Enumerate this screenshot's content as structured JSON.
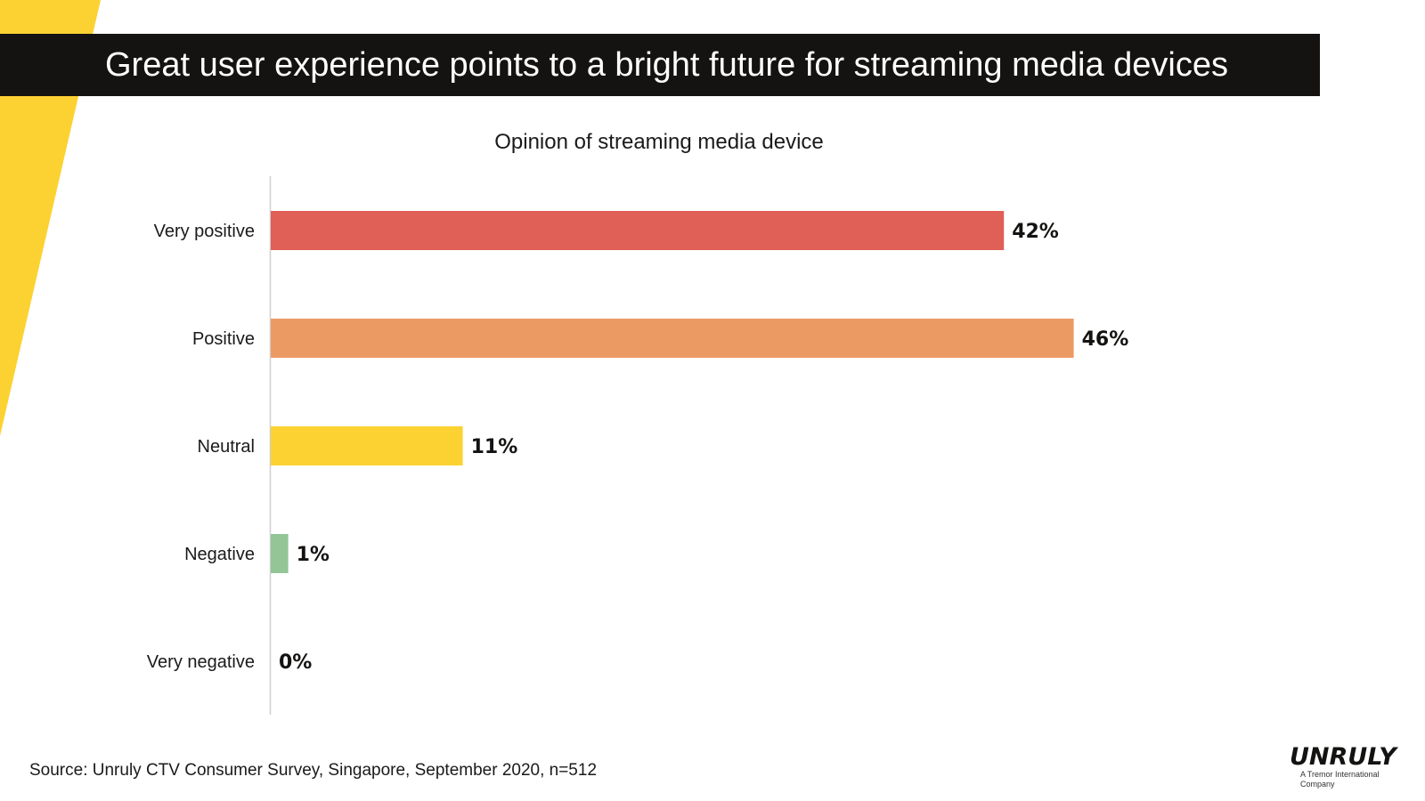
{
  "header": {
    "title": "Great user experience points to a bright future for streaming media devices"
  },
  "theme": {
    "accent": "#FCD232",
    "title_bar": "#141311",
    "axis": "#CFCFCF"
  },
  "chart_data": {
    "type": "bar",
    "orientation": "horizontal",
    "title": "Opinion of streaming media device",
    "categories": [
      "Very positive",
      "Positive",
      "Neutral",
      "Negative",
      "Very negative"
    ],
    "values": [
      42,
      46,
      11,
      1,
      0
    ],
    "value_labels": [
      "42%",
      "46%",
      "11%",
      "1%",
      "0%"
    ],
    "colors": [
      "#E05F57",
      "#EC9A64",
      "#FCD232",
      "#93C596",
      "#CCCCCC"
    ],
    "xlim": [
      0,
      50
    ],
    "xlabel": "",
    "ylabel": "",
    "grid": false,
    "legend": "none"
  },
  "footer": {
    "source": "Source: Unruly CTV Consumer Survey, Singapore, September 2020, n=512"
  },
  "logo": {
    "word": "UNRULY",
    "tagline": "A Tremor International Company"
  }
}
